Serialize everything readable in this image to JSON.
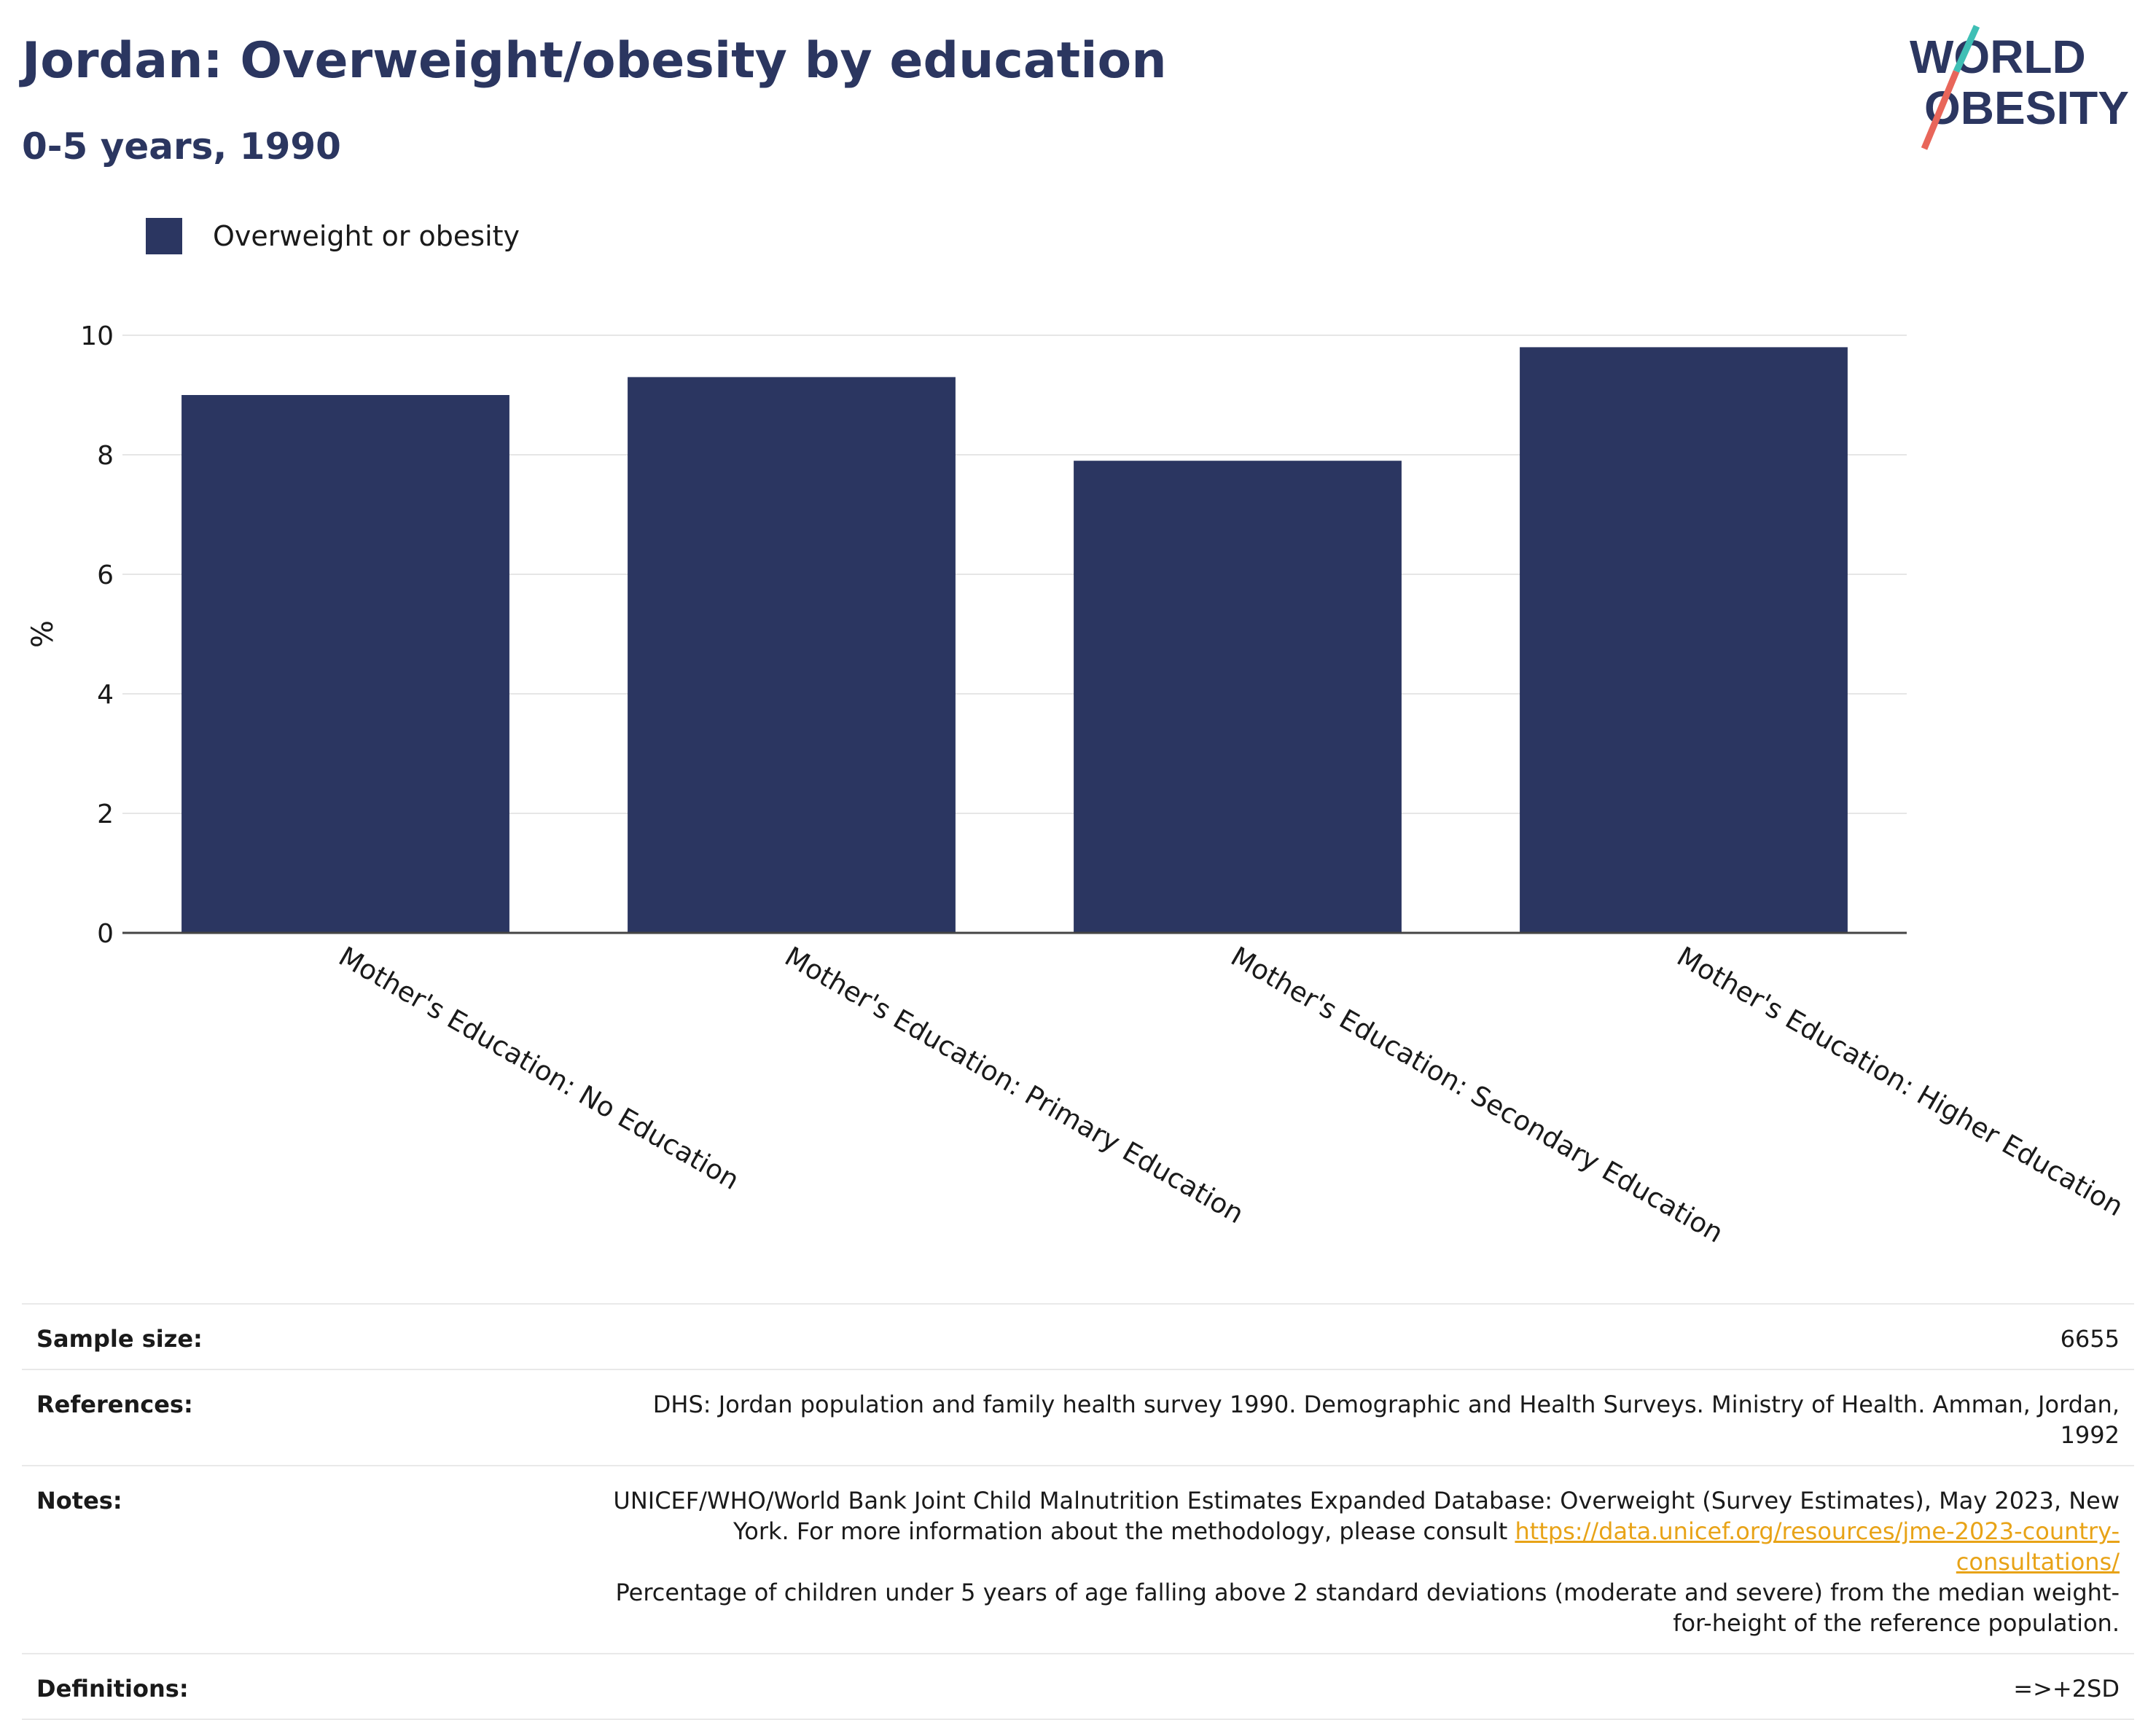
{
  "header": {
    "title": "Jordan: Overweight/obesity by education",
    "subtitle": "0-5 years, 1990"
  },
  "logo": {
    "line1": "WORLD",
    "line2": "OBESITY",
    "accent_teal": "#3fbfb5",
    "accent_coral": "#e8665a",
    "text_color": "#2b3660"
  },
  "colors": {
    "bar": "#2b3661",
    "title": "#2b3660",
    "link": "#e8a317"
  },
  "chart_data": {
    "type": "bar",
    "categories": [
      "Mother's Education: No Education",
      "Mother's Education: Primary Education",
      "Mother's Education: Secondary Education",
      "Mother's Education: Higher Education"
    ],
    "series": [
      {
        "name": "Overweight or obesity",
        "values": [
          9.0,
          9.3,
          7.9,
          9.8
        ]
      }
    ],
    "ylabel": "%",
    "ylim": [
      0,
      10
    ],
    "yticks": [
      0,
      2,
      4,
      6,
      8,
      10
    ],
    "grid": true,
    "legend_position": "top-left"
  },
  "info": {
    "sample_size_label": "Sample size:",
    "sample_size_value": "6655",
    "references_label": "References:",
    "references_value": "DHS: Jordan population and family health survey 1990. Demographic and Health Surveys. Ministry of Health. Amman, Jordan, 1992",
    "notes_label": "Notes:",
    "notes_text_1": "UNICEF/WHO/World Bank Joint Child Malnutrition Estimates Expanded Database: Overweight (Survey Estimates), May 2023, New York. For more information about the methodology, please consult ",
    "notes_link": "https://data.unicef.org/resources/jme-2023-country-consultations/",
    "notes_text_2": "Percentage of children under 5 years of age falling above 2 standard deviations (moderate and severe) from the median weight-for-height of the reference population.",
    "definitions_label": "Definitions:",
    "definitions_value": "=>+2SD"
  }
}
